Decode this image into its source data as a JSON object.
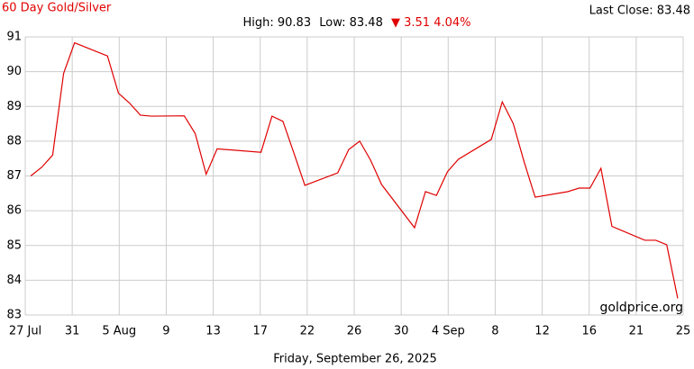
{
  "chart_data": {
    "type": "line",
    "title": "60 Day Gold/Silver",
    "high_label": "High: 90.83",
    "low_label": "Low: 83.48",
    "change_label": "▼ 3.51 4.04%",
    "last_close_label": "Last Close: 83.48",
    "watermark": "goldprice.org",
    "xlabel": "Friday, September 26, 2025",
    "grid": true,
    "x": [
      "2025-07-27T12:00",
      "2025-07-28T12:00",
      "2025-07-29T12:00",
      "2025-07-30T12:00",
      "2025-07-31T12:00",
      "2025-08-03T12:00",
      "2025-08-04T12:00",
      "2025-08-05T12:00",
      "2025-08-06T12:00",
      "2025-08-07T12:00",
      "2025-08-10T12:00",
      "2025-08-11T12:00",
      "2025-08-12T12:00",
      "2025-08-13T12:00",
      "2025-08-17T12:00",
      "2025-08-18T12:00",
      "2025-08-19T12:00",
      "2025-08-20T12:00",
      "2025-08-21T12:00",
      "2025-08-24T12:00",
      "2025-08-25T12:00",
      "2025-08-26T12:00",
      "2025-08-27T12:00",
      "2025-08-28T12:00",
      "2025-08-31T12:00",
      "2025-09-01T12:00",
      "2025-09-02T12:00",
      "2025-09-03T12:00",
      "2025-09-04T12:00",
      "2025-09-07T12:00",
      "2025-09-08T12:00",
      "2025-09-09T12:00",
      "2025-09-10T12:00",
      "2025-09-11T12:00",
      "2025-09-14T12:00",
      "2025-09-15T12:00",
      "2025-09-16T12:00",
      "2025-09-17T12:00",
      "2025-09-18T12:00",
      "2025-09-21T12:00",
      "2025-09-22T12:00",
      "2025-09-23T12:00",
      "2025-09-24T12:00"
    ],
    "series": [
      {
        "name": "Gold/Silver",
        "color": "#e00000",
        "values": [
          87.0,
          87.25,
          87.6,
          89.95,
          90.83,
          90.45,
          89.38,
          89.1,
          88.75,
          88.72,
          88.73,
          88.22,
          87.05,
          87.78,
          87.68,
          88.72,
          88.57,
          87.66,
          86.73,
          87.09,
          87.76,
          88.0,
          87.45,
          86.75,
          85.51,
          86.55,
          86.44,
          87.12,
          87.48,
          88.05,
          89.13,
          88.51,
          87.4,
          86.39,
          86.55,
          86.65,
          86.65,
          87.22,
          85.55,
          85.15,
          85.15,
          85.02,
          83.48
        ]
      }
    ],
    "xlim": [
      "2025-07-27T00:00",
      "2025-09-25T00:00"
    ],
    "xticks": [
      {
        "value": "2025-07-27T00:00",
        "label": "27 Jul"
      },
      {
        "value": "2025-07-31T06:51",
        "label": "31"
      },
      {
        "value": "2025-08-04T13:43",
        "label": "5 Aug"
      },
      {
        "value": "2025-08-08T20:34",
        "label": "9"
      },
      {
        "value": "2025-08-13T03:26",
        "label": "13"
      },
      {
        "value": "2025-08-17T10:17",
        "label": "17"
      },
      {
        "value": "2025-08-21T17:09",
        "label": "22"
      },
      {
        "value": "2025-08-26T00:00",
        "label": "26"
      },
      {
        "value": "2025-08-30T06:51",
        "label": "30"
      },
      {
        "value": "2025-09-03T13:43",
        "label": "4 Sep"
      },
      {
        "value": "2025-09-07T20:34",
        "label": "8"
      },
      {
        "value": "2025-09-12T03:26",
        "label": "12"
      },
      {
        "value": "2025-09-16T10:17",
        "label": "16"
      },
      {
        "value": "2025-09-20T17:09",
        "label": "21"
      },
      {
        "value": "2025-09-25T00:00",
        "label": "25"
      }
    ],
    "ylim": [
      83,
      91
    ],
    "yticks": [
      83,
      84,
      85,
      86,
      87,
      88,
      89,
      90,
      91
    ]
  }
}
